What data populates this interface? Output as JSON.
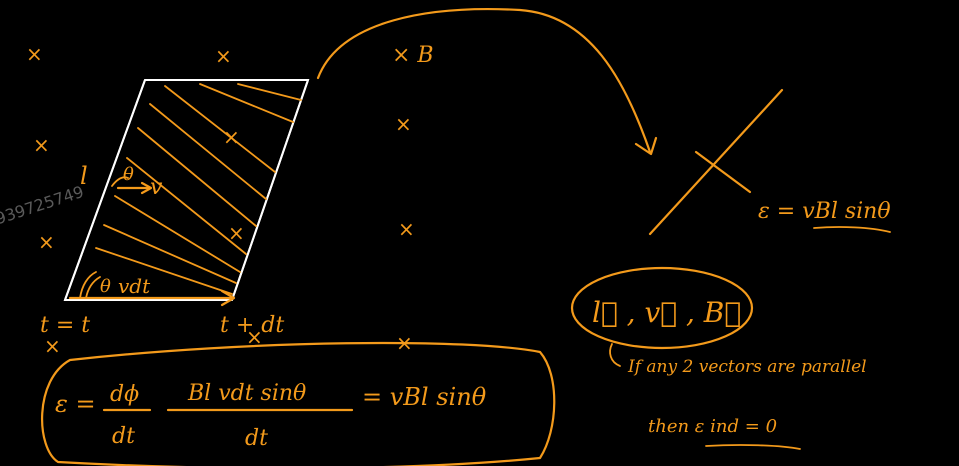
{
  "colors": {
    "background": "#000000",
    "ink": "#f39a1b",
    "edge": "#ffffff"
  },
  "field": {
    "symbol": "× B",
    "mark": "×"
  },
  "rod": {
    "length_symbol": "l",
    "angle_symbol": "θ",
    "velocity_symbol": "v",
    "displacement": "vdt",
    "time_start": "t = t",
    "time_end": "t + dt"
  },
  "emf_equation": {
    "lhs": "ε =",
    "frac1_num": "dϕ",
    "frac1_den": "dt",
    "frac2_num": "Bl vdt sinθ",
    "frac2_den": "dt",
    "rhs": "= vBl sinθ"
  },
  "side_result": "ε = vBl sinθ",
  "vectors": "l⃗ , v⃗ , B⃗",
  "condition_note": "If any 2 vectors are parallel",
  "condition_result": "then ε ind = 0"
}
